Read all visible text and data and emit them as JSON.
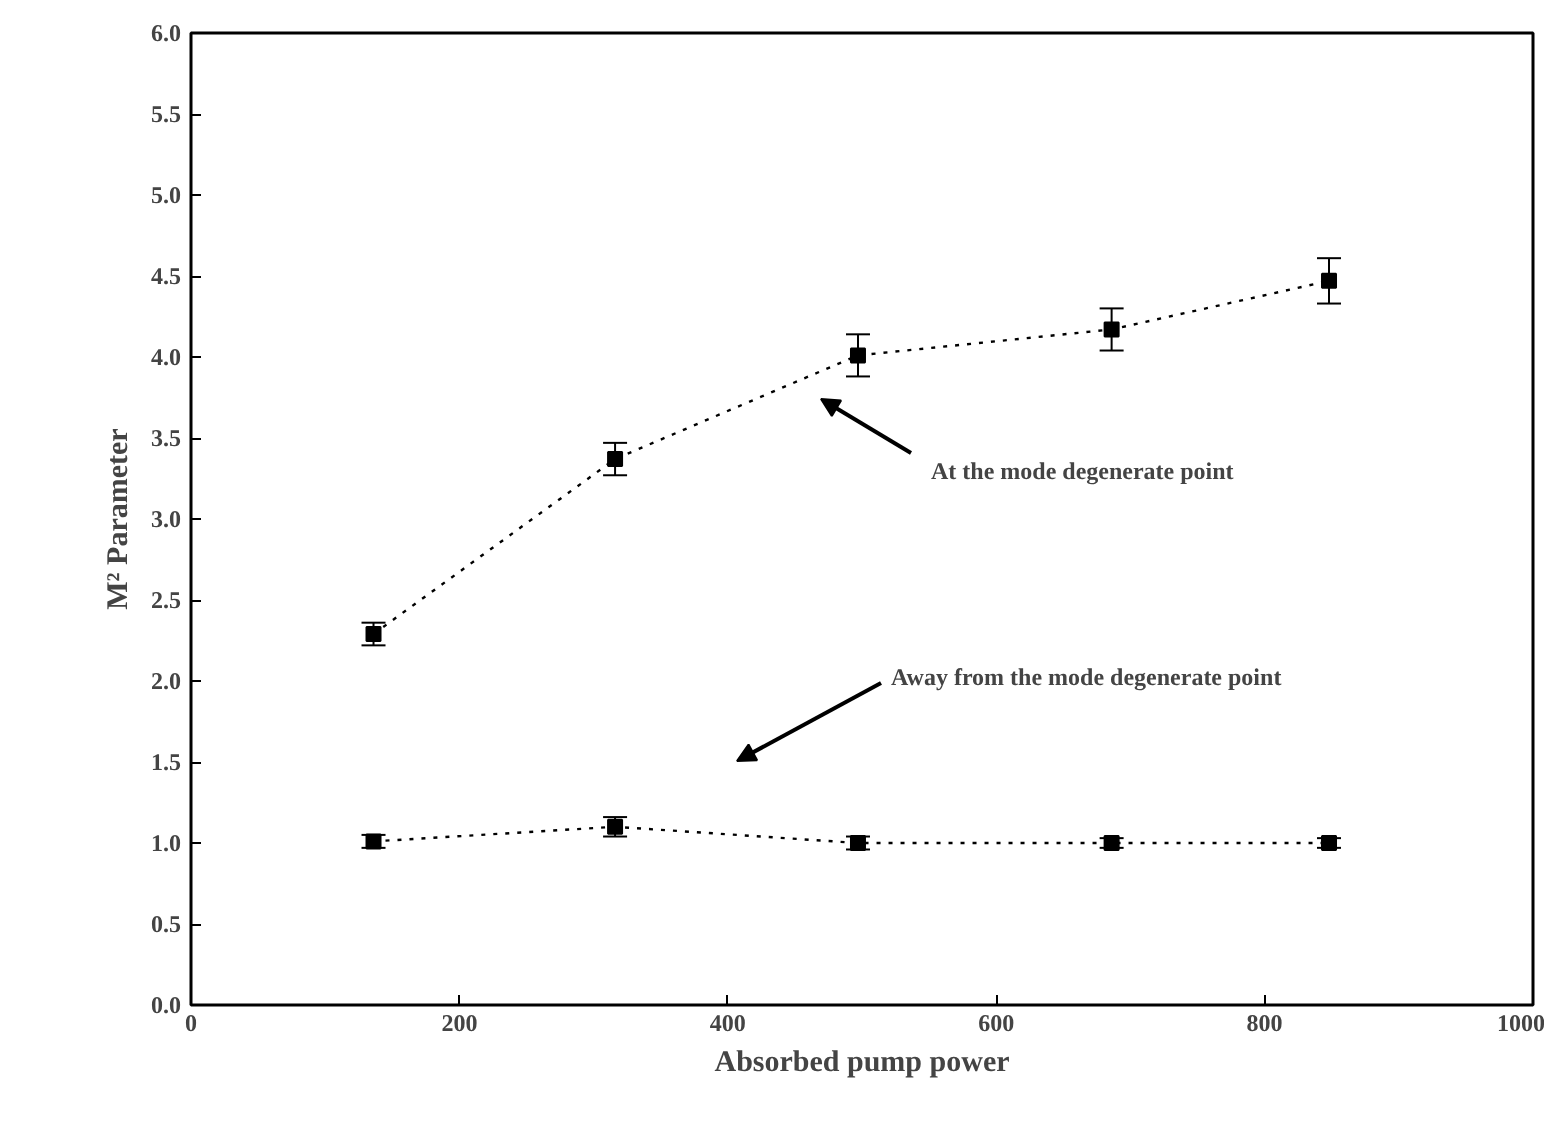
{
  "chart_data": {
    "type": "line",
    "xlabel": "Absorbed pump power",
    "ylabel": "M² Parameter",
    "x": [
      136,
      316,
      497,
      686,
      848
    ],
    "series": [
      {
        "color": "#000000",
        "values": [
          2.29,
          3.37,
          4.01,
          4.17,
          4.47
        ],
        "errors": [
          0.07,
          0.1,
          0.13,
          0.13,
          0.14
        ]
      },
      {
        "color": "#000000",
        "values": [
          1.01,
          1.1,
          1.0,
          1.0,
          1.0
        ],
        "errors": [
          0.04,
          0.06,
          0.04,
          0.03,
          0.03
        ]
      }
    ],
    "xlim": [
      0,
      1000
    ],
    "xticks": [
      0,
      200,
      400,
      600,
      800,
      1000
    ],
    "ylim": [
      0,
      6
    ],
    "yticks": [
      {
        "value": 0,
        "label": "0.0"
      },
      {
        "value": 0.5,
        "label": "0.5"
      },
      {
        "value": 1,
        "label": "1.0"
      },
      {
        "value": 1.5,
        "label": "1.5"
      },
      {
        "value": 2,
        "label": "2.0"
      },
      {
        "value": 2.5,
        "label": "2.5"
      },
      {
        "value": 3,
        "label": "3.0"
      },
      {
        "value": 3.5,
        "label": "3.5"
      },
      {
        "value": 4,
        "label": "4.0"
      },
      {
        "value": 4.5,
        "label": "4.5"
      },
      {
        "value": 5,
        "label": "5.0"
      },
      {
        "value": 5.5,
        "label": "5.5"
      },
      {
        "value": 6,
        "label": "6.0"
      }
    ],
    "annotations": [
      "At the mode degenerate point",
      "Away from the mode degenerate point"
    ],
    "grid": false,
    "marker": "square",
    "line_style": "dotted"
  }
}
